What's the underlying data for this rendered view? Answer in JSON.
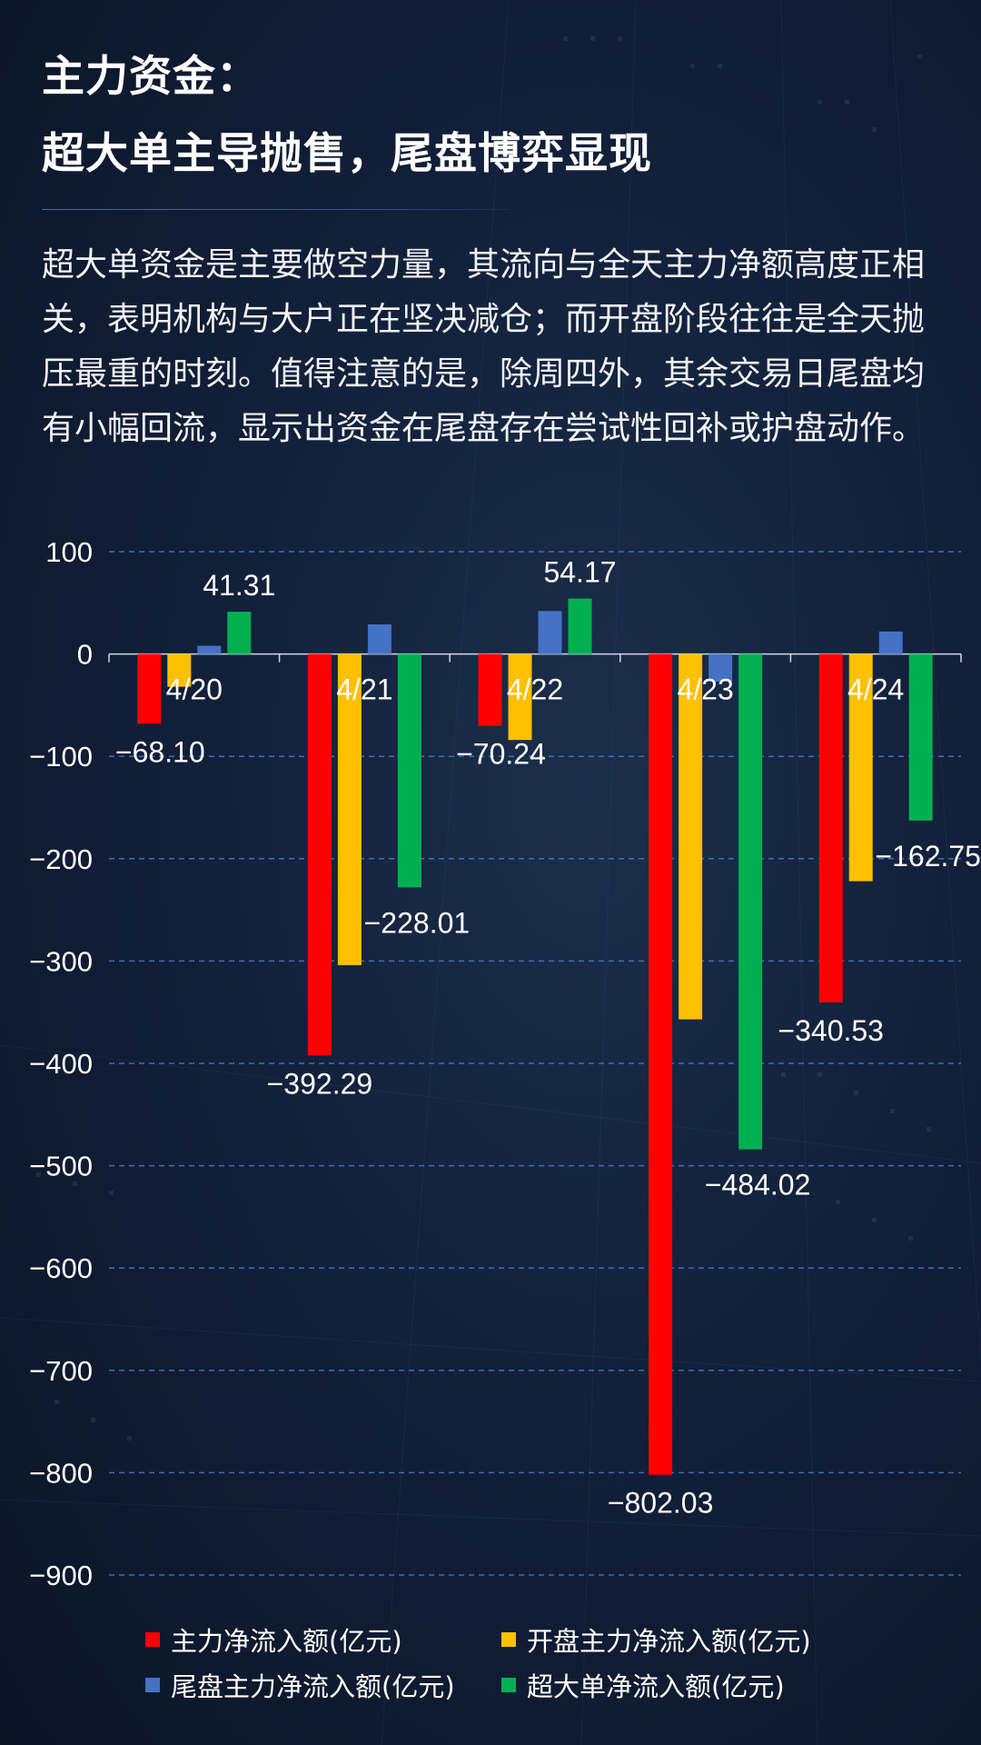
{
  "header": {
    "title_line_1": "主力资金：",
    "title_line_2": "超大单主导抛售，尾盘博弈显现"
  },
  "body": {
    "text": "超大单资金是主要做空力量，其流向与全天主力净额高度正相关，表明机构与大户正在坚决减仓；而开盘阶段往往是全天抛压最重的时刻。值得注意的是，除周四外，其余交易日尾盘均有小幅回流，显示出资金在尾盘存在尝试性回补或护盘动作。"
  },
  "chart_data": {
    "type": "bar",
    "categories": [
      "4/20",
      "4/21",
      "4/22",
      "4/23",
      "4/24"
    ],
    "series": [
      {
        "name": "主力净流入额(亿元)",
        "color": "#ff0000",
        "values": [
          -68.1,
          -392.29,
          -70.24,
          -802.03,
          -340.53
        ]
      },
      {
        "name": "开盘主力净流入额(亿元)",
        "color": "#ffc000",
        "values": [
          -32,
          -304,
          -84,
          -357,
          -222
        ]
      },
      {
        "name": "尾盘主力净流入额(亿元)",
        "color": "#4472c4",
        "values": [
          8,
          29,
          42,
          -27,
          22
        ]
      },
      {
        "name": "超大单净流入额(亿元)",
        "color": "#00b050",
        "values": [
          41.31,
          -228.01,
          54.17,
          -484.02,
          -162.75
        ]
      }
    ],
    "data_labels": [
      {
        "series": 0,
        "index": 0,
        "text": "-68.10"
      },
      {
        "series": 3,
        "index": 0,
        "text": "41.31"
      },
      {
        "series": 0,
        "index": 1,
        "text": "-392.29"
      },
      {
        "series": 3,
        "index": 1,
        "text": "-228.01"
      },
      {
        "series": 0,
        "index": 2,
        "text": "-70.24"
      },
      {
        "series": 3,
        "index": 2,
        "text": "54.17"
      },
      {
        "series": 0,
        "index": 3,
        "text": "-802.03"
      },
      {
        "series": 3,
        "index": 3,
        "text": "-484.02"
      },
      {
        "series": 0,
        "index": 4,
        "text": "-340.53"
      },
      {
        "series": 3,
        "index": 4,
        "text": "-162.75"
      }
    ],
    "ylim": [
      -900,
      100
    ],
    "yticks": [
      100,
      0,
      -100,
      -200,
      -300,
      -400,
      -500,
      -600,
      -700,
      -800,
      -900
    ],
    "ytick_labels": [
      "100",
      "0",
      "−100",
      "−200",
      "−300",
      "−400",
      "−500",
      "−600",
      "−700",
      "−800",
      "−900"
    ],
    "xlabel": "",
    "ylabel": "",
    "grid": true,
    "legend_position": "bottom"
  }
}
